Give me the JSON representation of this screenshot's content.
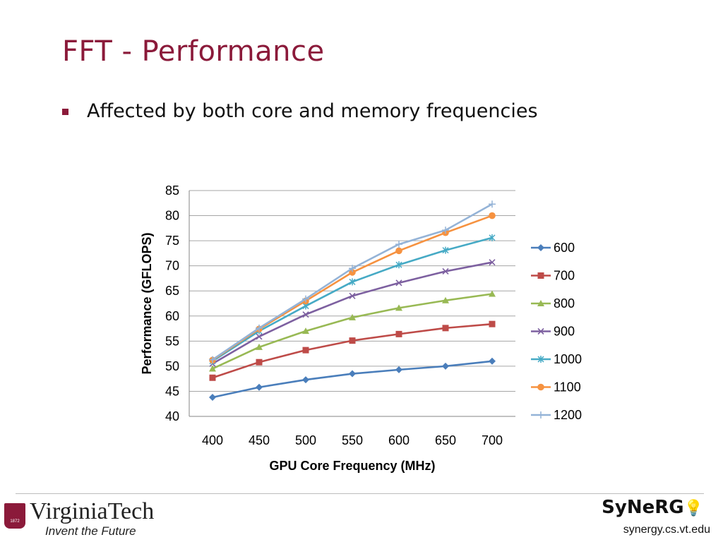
{
  "slide": {
    "title": "FFT - Performance",
    "bullet": "Affected by both core and memory frequencies",
    "left_logo": {
      "name": "VirginiaTech",
      "tagline": "Invent the Future",
      "shield_text": "1872"
    },
    "right_logo": {
      "name": "SyNeRG",
      "url": "synergy.cs.vt.edu"
    }
  },
  "chart_data": {
    "type": "line",
    "xlabel": "GPU Core Frequency (MHz)",
    "ylabel": "Performance (GFLOPS)",
    "x": [
      400,
      450,
      500,
      550,
      600,
      650,
      700
    ],
    "ylim": [
      40,
      85
    ],
    "yticks": [
      40,
      45,
      50,
      55,
      60,
      65,
      70,
      75,
      80,
      85
    ],
    "grid": true,
    "legend_position": "right",
    "series": [
      {
        "name": "600",
        "color": "#4a7ebb",
        "marker": "diamond",
        "values": [
          43.8,
          45.8,
          47.3,
          48.5,
          49.3,
          50.0,
          51.0
        ]
      },
      {
        "name": "700",
        "color": "#be4b48",
        "marker": "square",
        "values": [
          47.7,
          50.8,
          53.2,
          55.1,
          56.4,
          57.6,
          58.4
        ]
      },
      {
        "name": "800",
        "color": "#98b954",
        "marker": "triangle",
        "values": [
          49.5,
          53.8,
          57.0,
          59.7,
          61.6,
          63.1,
          64.4
        ]
      },
      {
        "name": "900",
        "color": "#7d60a0",
        "marker": "x",
        "values": [
          50.5,
          55.9,
          60.3,
          64.0,
          66.6,
          68.9,
          70.7
        ]
      },
      {
        "name": "1000",
        "color": "#46aac5",
        "marker": "star",
        "values": [
          51.0,
          57.0,
          62.0,
          66.8,
          70.2,
          73.1,
          75.6
        ]
      },
      {
        "name": "1100",
        "color": "#f69240",
        "marker": "circle",
        "values": [
          51.2,
          57.4,
          63.0,
          68.7,
          73.0,
          76.6,
          80.0
        ]
      },
      {
        "name": "1200",
        "color": "#94b3d7",
        "marker": "plus",
        "values": [
          51.3,
          57.6,
          63.4,
          69.5,
          74.3,
          77.1,
          82.3
        ]
      }
    ]
  }
}
